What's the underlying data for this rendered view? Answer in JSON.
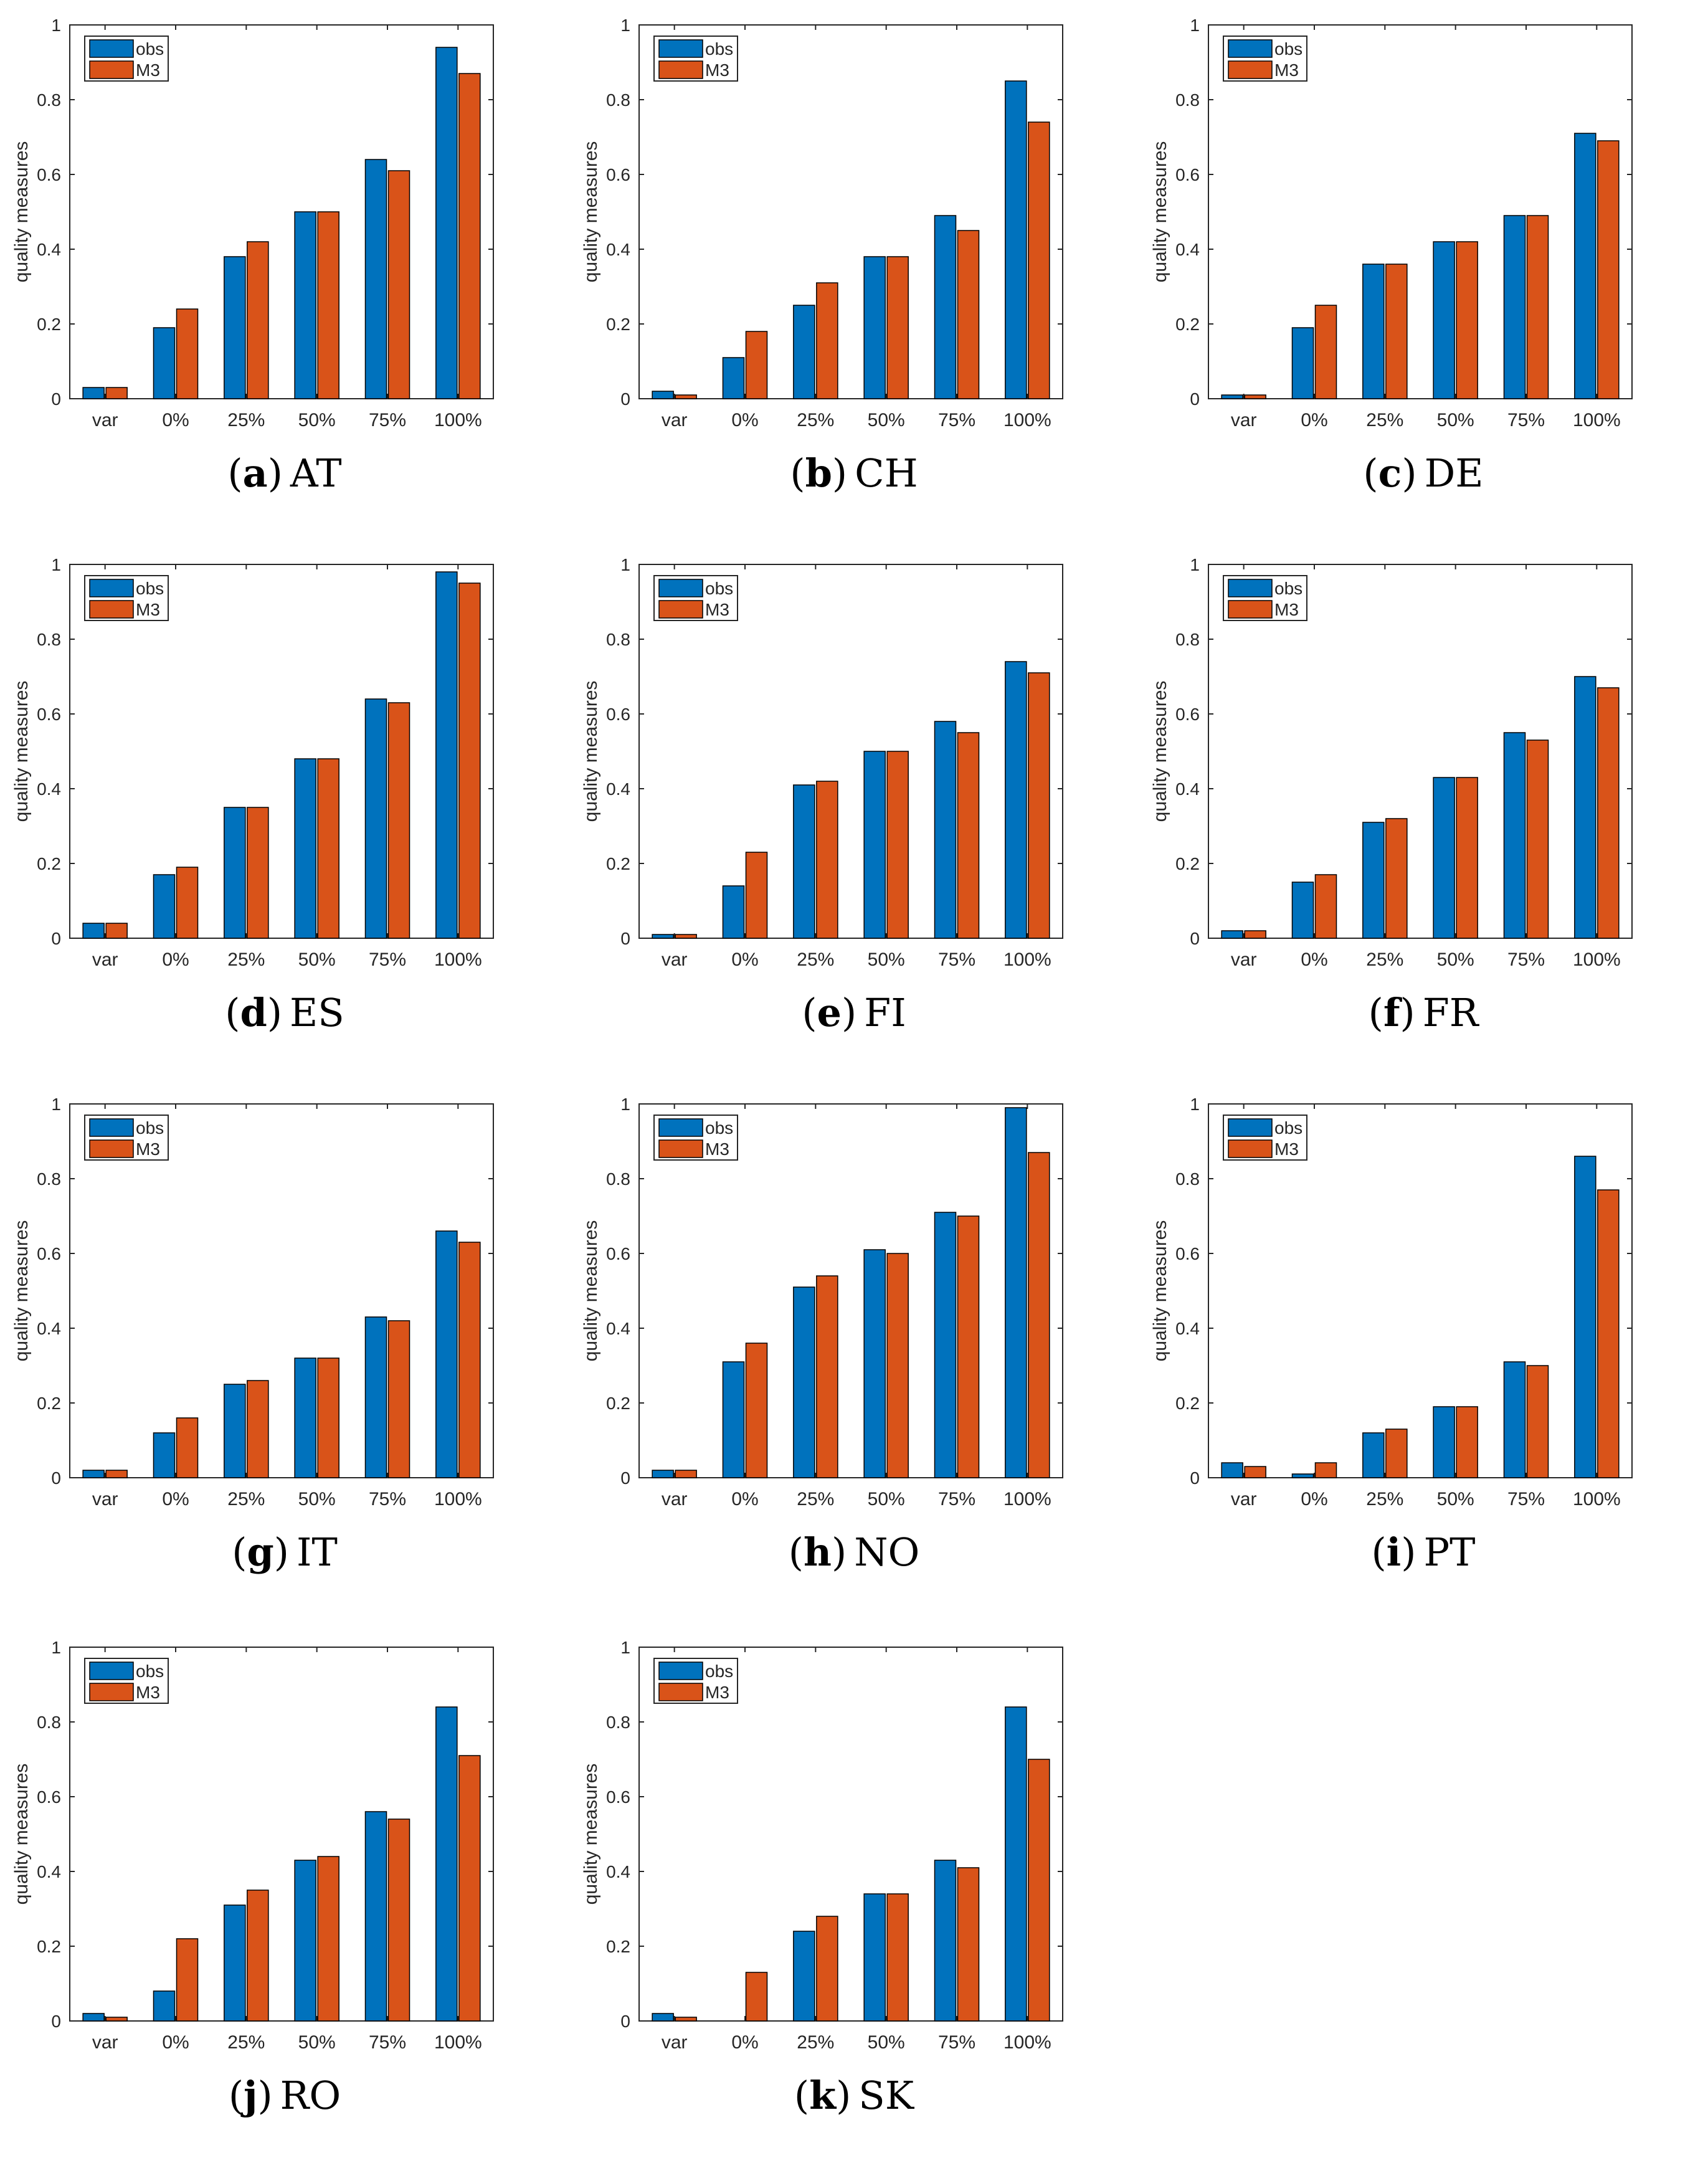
{
  "figure": {
    "ylabel": "quality measures",
    "categories": [
      "var",
      "0%",
      "25%",
      "50%",
      "75%",
      "100%"
    ],
    "ylim": [
      0,
      1
    ],
    "yticks": [
      0,
      0.2,
      0.4,
      0.6,
      0.8,
      1
    ],
    "ytick_labels": [
      "0",
      "0.2",
      "0.4",
      "0.6",
      "0.8",
      "1"
    ],
    "legend": [
      "obs",
      "M3"
    ],
    "colors": {
      "obs": "#0072BD",
      "M3": "#D95319"
    }
  },
  "chart_data": [
    {
      "type": "bar",
      "panel": "a",
      "title": "AT",
      "xlabel": "",
      "ylabel": "quality measures",
      "ylim": [
        0,
        1
      ],
      "categories": [
        "var",
        "0%",
        "25%",
        "50%",
        "75%",
        "100%"
      ],
      "series": [
        {
          "name": "obs",
          "values": [
            0.03,
            0.19,
            0.38,
            0.5,
            0.64,
            0.94
          ]
        },
        {
          "name": "M3",
          "values": [
            0.03,
            0.24,
            0.42,
            0.5,
            0.61,
            0.87
          ]
        }
      ]
    },
    {
      "type": "bar",
      "panel": "b",
      "title": "CH",
      "xlabel": "",
      "ylabel": "quality measures",
      "ylim": [
        0,
        1
      ],
      "categories": [
        "var",
        "0%",
        "25%",
        "50%",
        "75%",
        "100%"
      ],
      "series": [
        {
          "name": "obs",
          "values": [
            0.02,
            0.11,
            0.25,
            0.38,
            0.49,
            0.85
          ]
        },
        {
          "name": "M3",
          "values": [
            0.01,
            0.18,
            0.31,
            0.38,
            0.45,
            0.74
          ]
        }
      ]
    },
    {
      "type": "bar",
      "panel": "c",
      "title": "DE",
      "xlabel": "",
      "ylabel": "quality measures",
      "ylim": [
        0,
        1
      ],
      "categories": [
        "var",
        "0%",
        "25%",
        "50%",
        "75%",
        "100%"
      ],
      "series": [
        {
          "name": "obs",
          "values": [
            0.01,
            0.19,
            0.36,
            0.42,
            0.49,
            0.71
          ]
        },
        {
          "name": "M3",
          "values": [
            0.01,
            0.25,
            0.36,
            0.42,
            0.49,
            0.69
          ]
        }
      ]
    },
    {
      "type": "bar",
      "panel": "d",
      "title": "ES",
      "xlabel": "",
      "ylabel": "quality measures",
      "ylim": [
        0,
        1
      ],
      "categories": [
        "var",
        "0%",
        "25%",
        "50%",
        "75%",
        "100%"
      ],
      "series": [
        {
          "name": "obs",
          "values": [
            0.04,
            0.17,
            0.35,
            0.48,
            0.64,
            0.98
          ]
        },
        {
          "name": "M3",
          "values": [
            0.04,
            0.19,
            0.35,
            0.48,
            0.63,
            0.95
          ]
        }
      ]
    },
    {
      "type": "bar",
      "panel": "e",
      "title": "FI",
      "xlabel": "",
      "ylabel": "quality measures",
      "ylim": [
        0,
        1
      ],
      "categories": [
        "var",
        "0%",
        "25%",
        "50%",
        "75%",
        "100%"
      ],
      "series": [
        {
          "name": "obs",
          "values": [
            0.01,
            0.14,
            0.41,
            0.5,
            0.58,
            0.74
          ]
        },
        {
          "name": "M3",
          "values": [
            0.01,
            0.23,
            0.42,
            0.5,
            0.55,
            0.71
          ]
        }
      ]
    },
    {
      "type": "bar",
      "panel": "f",
      "title": "FR",
      "xlabel": "",
      "ylabel": "quality measures",
      "ylim": [
        0,
        1
      ],
      "categories": [
        "var",
        "0%",
        "25%",
        "50%",
        "75%",
        "100%"
      ],
      "series": [
        {
          "name": "obs",
          "values": [
            0.02,
            0.15,
            0.31,
            0.43,
            0.55,
            0.7
          ]
        },
        {
          "name": "M3",
          "values": [
            0.02,
            0.17,
            0.32,
            0.43,
            0.53,
            0.67
          ]
        }
      ]
    },
    {
      "type": "bar",
      "panel": "g",
      "title": "IT",
      "xlabel": "",
      "ylabel": "quality measures",
      "ylim": [
        0,
        1
      ],
      "categories": [
        "var",
        "0%",
        "25%",
        "50%",
        "75%",
        "100%"
      ],
      "series": [
        {
          "name": "obs",
          "values": [
            0.02,
            0.12,
            0.25,
            0.32,
            0.43,
            0.66
          ]
        },
        {
          "name": "M3",
          "values": [
            0.02,
            0.16,
            0.26,
            0.32,
            0.42,
            0.63
          ]
        }
      ]
    },
    {
      "type": "bar",
      "panel": "h",
      "title": "NO",
      "xlabel": "",
      "ylabel": "quality measures",
      "ylim": [
        0,
        1
      ],
      "categories": [
        "var",
        "0%",
        "25%",
        "50%",
        "75%",
        "100%"
      ],
      "series": [
        {
          "name": "obs",
          "values": [
            0.02,
            0.31,
            0.51,
            0.61,
            0.71,
            0.99
          ]
        },
        {
          "name": "M3",
          "values": [
            0.02,
            0.36,
            0.54,
            0.6,
            0.7,
            0.87
          ]
        }
      ]
    },
    {
      "type": "bar",
      "panel": "i",
      "title": "PT",
      "xlabel": "",
      "ylabel": "quality measures",
      "ylim": [
        0,
        1
      ],
      "categories": [
        "var",
        "0%",
        "25%",
        "50%",
        "75%",
        "100%"
      ],
      "series": [
        {
          "name": "obs",
          "values": [
            0.04,
            0.01,
            0.12,
            0.19,
            0.31,
            0.86
          ]
        },
        {
          "name": "M3",
          "values": [
            0.03,
            0.04,
            0.13,
            0.19,
            0.3,
            0.77
          ]
        }
      ]
    },
    {
      "type": "bar",
      "panel": "j",
      "title": "RO",
      "xlabel": "",
      "ylabel": "quality measures",
      "ylim": [
        0,
        1
      ],
      "categories": [
        "var",
        "0%",
        "25%",
        "50%",
        "75%",
        "100%"
      ],
      "series": [
        {
          "name": "obs",
          "values": [
            0.02,
            0.08,
            0.31,
            0.43,
            0.56,
            0.84
          ]
        },
        {
          "name": "M3",
          "values": [
            0.01,
            0.22,
            0.35,
            0.44,
            0.54,
            0.71
          ]
        }
      ]
    },
    {
      "type": "bar",
      "panel": "k",
      "title": "SK",
      "xlabel": "",
      "ylabel": "quality measures",
      "ylim": [
        0,
        1
      ],
      "categories": [
        "var",
        "0%",
        "25%",
        "50%",
        "75%",
        "100%"
      ],
      "series": [
        {
          "name": "obs",
          "values": [
            0.02,
            0.0,
            0.24,
            0.34,
            0.43,
            0.84
          ]
        },
        {
          "name": "M3",
          "values": [
            0.01,
            0.13,
            0.28,
            0.34,
            0.41,
            0.7
          ]
        }
      ]
    }
  ]
}
